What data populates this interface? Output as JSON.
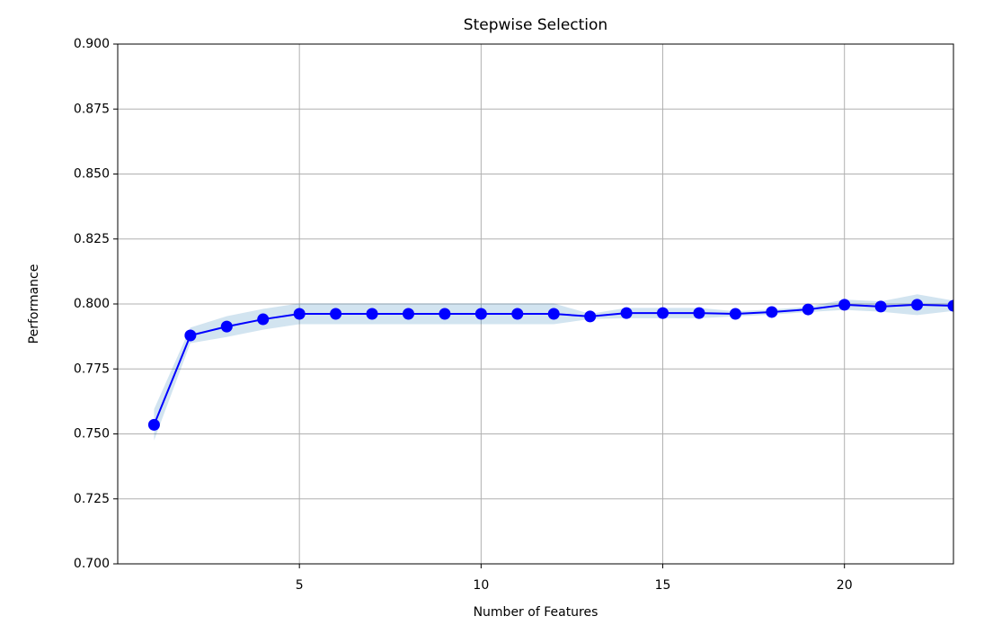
{
  "chart_data": {
    "type": "line",
    "title": "Stepwise Selection",
    "x_label": "Number of Features",
    "y_label": "Performance",
    "x": [
      1,
      2,
      3,
      4,
      5,
      6,
      7,
      8,
      9,
      10,
      11,
      12,
      13,
      14,
      15,
      16,
      17,
      18,
      19,
      20,
      21,
      22,
      23
    ],
    "series": [
      {
        "color": "#0000ff",
        "band_color": "#1f77b4",
        "values": [
          0.7535,
          0.7879,
          0.7913,
          0.7941,
          0.7962,
          0.7962,
          0.7962,
          0.7962,
          0.7962,
          0.7962,
          0.7962,
          0.7962,
          0.7952,
          0.7965,
          0.7965,
          0.7965,
          0.7962,
          0.7969,
          0.7979,
          0.7997,
          0.799,
          0.7997,
          0.7993
        ],
        "err": [
          0.006,
          0.003,
          0.004,
          0.004,
          0.004,
          0.004,
          0.004,
          0.004,
          0.004,
          0.004,
          0.004,
          0.004,
          0.001,
          0.002,
          0.002,
          0.002,
          0.001,
          0.001,
          0.001,
          0.002,
          0.002,
          0.004,
          0.002
        ]
      }
    ],
    "xlim": [
      0,
      23
    ],
    "ylim": [
      0.7,
      0.9
    ],
    "xticks": [
      5,
      10,
      15,
      20
    ],
    "yticks": [
      {
        "value": 0.7,
        "label": "0.700"
      },
      0.725,
      {
        "value": 0.75,
        "label": "0.750"
      },
      0.775,
      {
        "value": 0.8,
        "label": "0.800"
      },
      0.825,
      {
        "value": 0.85,
        "label": "0.850"
      },
      0.875,
      {
        "value": 0.9,
        "label": "0.900"
      }
    ],
    "grid": true
  }
}
